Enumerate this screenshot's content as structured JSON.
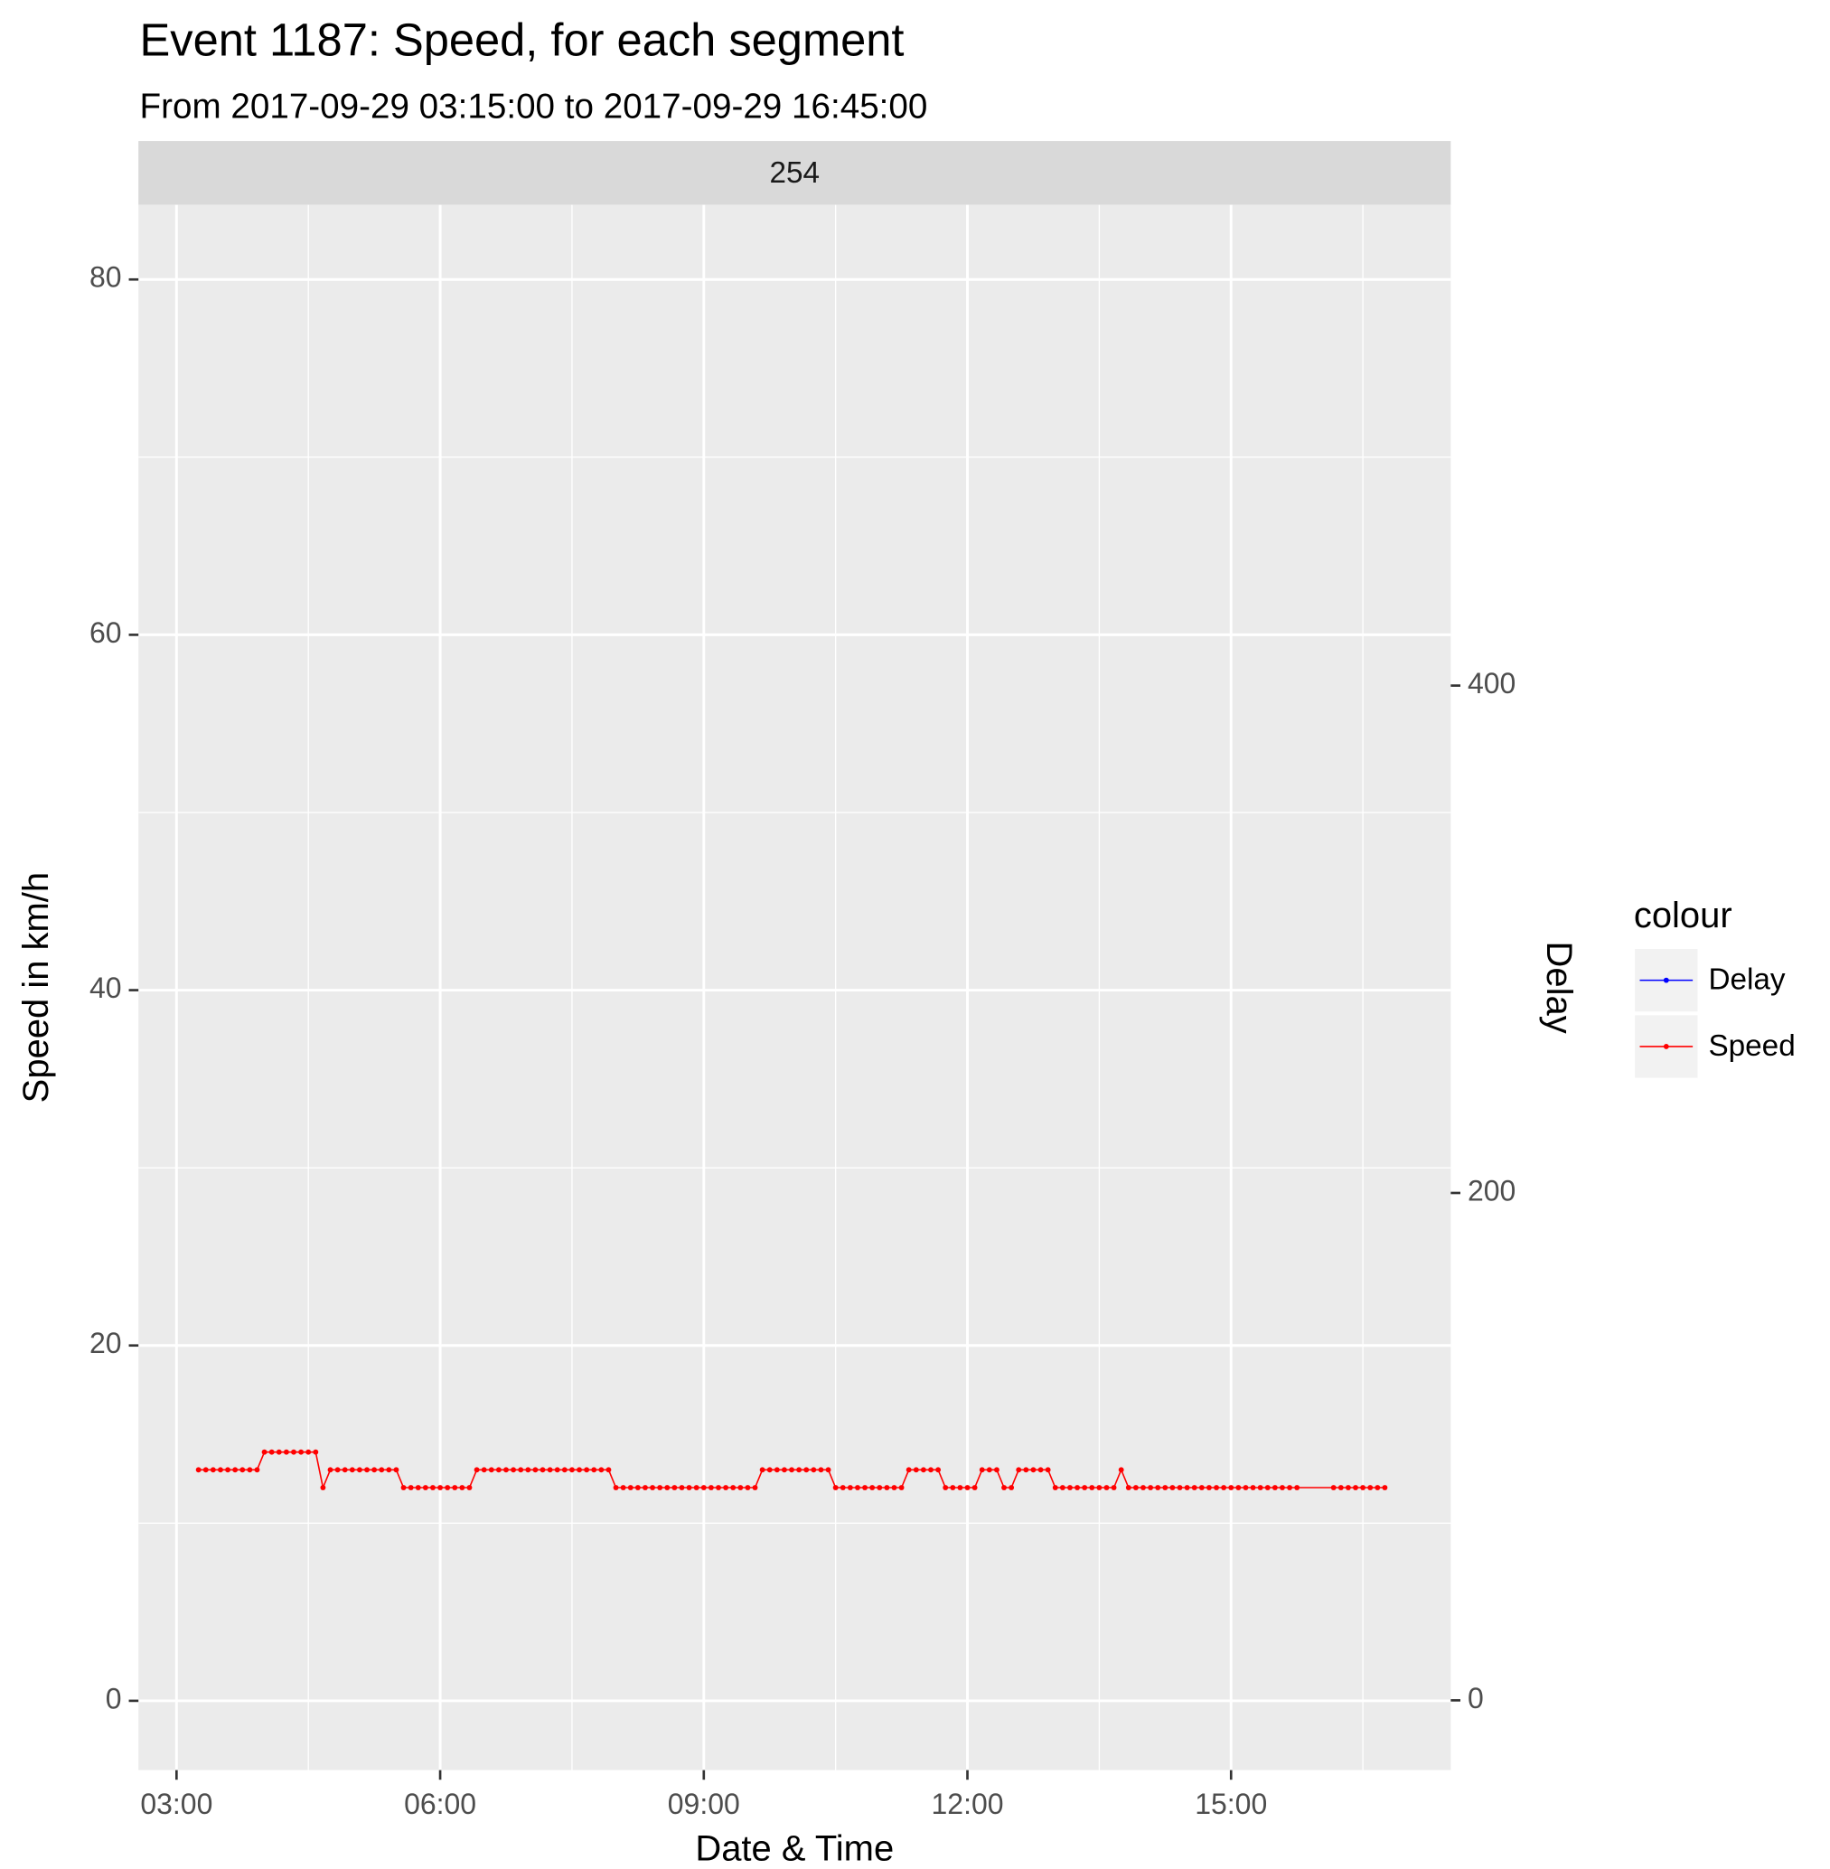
{
  "chart_data": {
    "type": "line",
    "title": "Event 1187: Speed, for each segment",
    "subtitle": "From 2017-09-29 03:15:00 to 2017-09-29 16:45:00",
    "facet_label": "254",
    "x_label": "Date & Time",
    "y_label": "Speed in km/h",
    "y2_label": "Delay",
    "legend_title": "colour",
    "legend_position": "right",
    "grid": true,
    "xlim": [
      "02:34",
      "17:30"
    ],
    "xticks": [
      "03:00",
      "06:00",
      "09:00",
      "12:00",
      "15:00"
    ],
    "ylim": [
      -3.9,
      84.2
    ],
    "yticks": [
      0,
      20,
      40,
      60,
      80
    ],
    "y2lim": [
      -27.5,
      589.5
    ],
    "y2ticks": [
      0,
      200,
      400
    ],
    "series": [
      {
        "name": "Delay",
        "color": "#0000ff",
        "axis": "y2",
        "x": [],
        "values": []
      },
      {
        "name": "Speed",
        "color": "#ff0000",
        "x": [
          "03:15",
          "03:20",
          "03:25",
          "03:30",
          "03:35",
          "03:40",
          "03:45",
          "03:50",
          "03:55",
          "04:00",
          "04:05",
          "04:10",
          "04:15",
          "04:20",
          "04:25",
          "04:30",
          "04:35",
          "04:40",
          "04:45",
          "04:50",
          "04:55",
          "05:00",
          "05:05",
          "05:10",
          "05:15",
          "05:20",
          "05:25",
          "05:30",
          "05:35",
          "05:40",
          "05:45",
          "05:50",
          "05:55",
          "06:00",
          "06:05",
          "06:10",
          "06:15",
          "06:20",
          "06:25",
          "06:30",
          "06:35",
          "06:40",
          "06:45",
          "06:50",
          "06:55",
          "07:00",
          "07:05",
          "07:10",
          "07:15",
          "07:20",
          "07:25",
          "07:30",
          "07:35",
          "07:40",
          "07:45",
          "07:50",
          "07:55",
          "08:00",
          "08:05",
          "08:10",
          "08:15",
          "08:20",
          "08:25",
          "08:30",
          "08:35",
          "08:40",
          "08:45",
          "08:50",
          "08:55",
          "09:00",
          "09:05",
          "09:10",
          "09:15",
          "09:20",
          "09:25",
          "09:30",
          "09:35",
          "09:40",
          "09:45",
          "09:50",
          "09:55",
          "10:00",
          "10:05",
          "10:10",
          "10:15",
          "10:20",
          "10:25",
          "10:30",
          "10:35",
          "10:40",
          "10:45",
          "10:50",
          "10:55",
          "11:00",
          "11:05",
          "11:10",
          "11:15",
          "11:20",
          "11:25",
          "11:30",
          "11:35",
          "11:40",
          "11:45",
          "11:50",
          "11:55",
          "12:00",
          "12:05",
          "12:10",
          "12:15",
          "12:20",
          "12:25",
          "12:30",
          "12:35",
          "12:40",
          "12:45",
          "12:50",
          "12:55",
          "13:00",
          "13:05",
          "13:10",
          "13:15",
          "13:20",
          "13:25",
          "13:30",
          "13:35",
          "13:40",
          "13:45",
          "13:50",
          "13:55",
          "14:00",
          "14:05",
          "14:10",
          "14:15",
          "14:20",
          "14:25",
          "14:30",
          "14:35",
          "14:40",
          "14:45",
          "14:50",
          "14:55",
          "15:00",
          "15:05",
          "15:10",
          "15:15",
          "15:20",
          "15:25",
          "15:30",
          "15:35",
          "15:40",
          "15:45",
          "16:10",
          "16:15",
          "16:20",
          "16:25",
          "16:30",
          "16:35",
          "16:40",
          "16:45"
        ],
        "values": [
          13,
          13,
          13,
          13,
          13,
          13,
          13,
          13,
          13,
          14,
          14,
          14,
          14,
          14,
          14,
          14,
          14,
          12,
          13,
          13,
          13,
          13,
          13,
          13,
          13,
          13,
          13,
          13,
          12,
          12,
          12,
          12,
          12,
          12,
          12,
          12,
          12,
          12,
          13,
          13,
          13,
          13,
          13,
          13,
          13,
          13,
          13,
          13,
          13,
          13,
          13,
          13,
          13,
          13,
          13,
          13,
          13,
          12,
          12,
          12,
          12,
          12,
          12,
          12,
          12,
          12,
          12,
          12,
          12,
          12,
          12,
          12,
          12,
          12,
          12,
          12,
          12,
          13,
          13,
          13,
          13,
          13,
          13,
          13,
          13,
          13,
          13,
          12,
          12,
          12,
          12,
          12,
          12,
          12,
          12,
          12,
          12,
          13,
          13,
          13,
          13,
          13,
          12,
          12,
          12,
          12,
          12,
          13,
          13,
          13,
          12,
          12,
          13,
          13,
          13,
          13,
          13,
          12,
          12,
          12,
          12,
          12,
          12,
          12,
          12,
          12,
          13,
          12,
          12,
          12,
          12,
          12,
          12,
          12,
          12,
          12,
          12,
          12,
          12,
          12,
          12,
          12,
          12,
          12,
          12,
          12,
          12,
          12,
          12,
          12,
          12,
          12,
          12,
          12,
          12,
          12,
          12,
          12,
          12
        ]
      }
    ]
  }
}
